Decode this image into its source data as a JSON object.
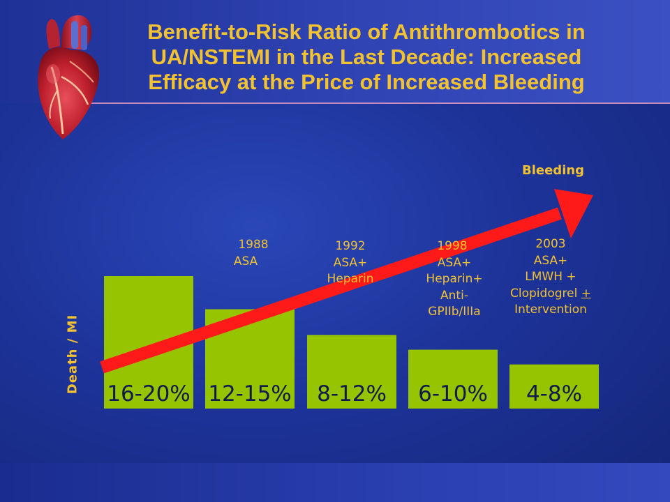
{
  "slide": {
    "title_lines": [
      "Benefit-to-Risk Ratio of Antithrombotics in",
      "UA/NSTEMI in the Last Decade: Increased",
      "Efficacy at the Price of Increased Bleeding"
    ],
    "colors": {
      "background": "#1d3399",
      "title": "#f2c230",
      "bar": "#97c400",
      "arrow": "#ff1a1a",
      "bar_label": "#0e1a50"
    },
    "icons": [
      "heart-illustration"
    ]
  },
  "chart_data": {
    "type": "bar",
    "categories": [
      "16-20%",
      "12-15%",
      "8-12%",
      "6-10%",
      "4-8%"
    ],
    "values": [
      18,
      13.5,
      10,
      8,
      6
    ],
    "value_labels": [
      "16-20%",
      "12-15%",
      "8-12%",
      "6-10%",
      "4-8%"
    ],
    "ylabel": "Death / MI",
    "ylim": [
      0,
      19
    ],
    "grid": false,
    "eras": [
      {
        "year": "",
        "lines": []
      },
      {
        "year": "1988",
        "lines": [
          "ASA"
        ]
      },
      {
        "year": "1992",
        "lines": [
          "ASA+",
          "Heparin"
        ]
      },
      {
        "year": "1998",
        "lines": [
          "ASA+",
          "Heparin+",
          "Anti-",
          "GPIIb/IIIa"
        ]
      },
      {
        "year": "2003",
        "lines": [
          "ASA+",
          "LMWH +",
          "Clopidogrel +",
          "Intervention"
        ]
      }
    ],
    "trend_arrow": {
      "label": "Bleeding",
      "direction": "increasing"
    }
  }
}
